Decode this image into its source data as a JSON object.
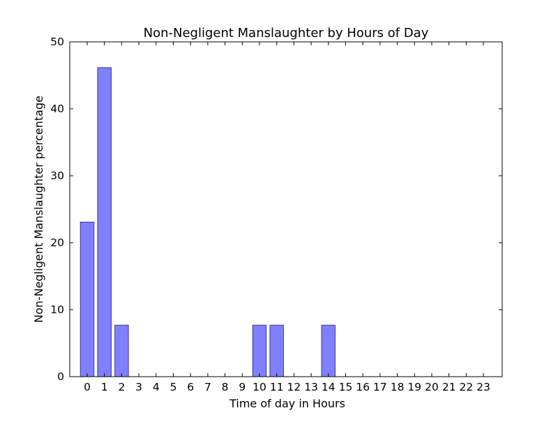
{
  "chart_data": {
    "type": "bar",
    "title": "Non-Negligent Manslaughter by Hours of Day",
    "xlabel": "Time of day in Hours",
    "ylabel": "Non-Negligent Manslaughter percentage",
    "categories": [
      "0",
      "1",
      "2",
      "3",
      "4",
      "5",
      "6",
      "7",
      "8",
      "9",
      "10",
      "11",
      "12",
      "13",
      "14",
      "15",
      "16",
      "17",
      "18",
      "19",
      "20",
      "21",
      "22",
      "23"
    ],
    "values": [
      23.08,
      46.15,
      7.69,
      0,
      0,
      0,
      0,
      0,
      0,
      0,
      7.69,
      7.69,
      0,
      0,
      7.69,
      0,
      0,
      0,
      0,
      0,
      0,
      0,
      0,
      0
    ],
    "ylim": [
      0,
      50
    ],
    "yticks": [
      0,
      10,
      20,
      30,
      40,
      50
    ],
    "grid": false,
    "colors": {
      "bar_fill": "#8080ff",
      "bar_edge": "#3a3a8c"
    }
  }
}
